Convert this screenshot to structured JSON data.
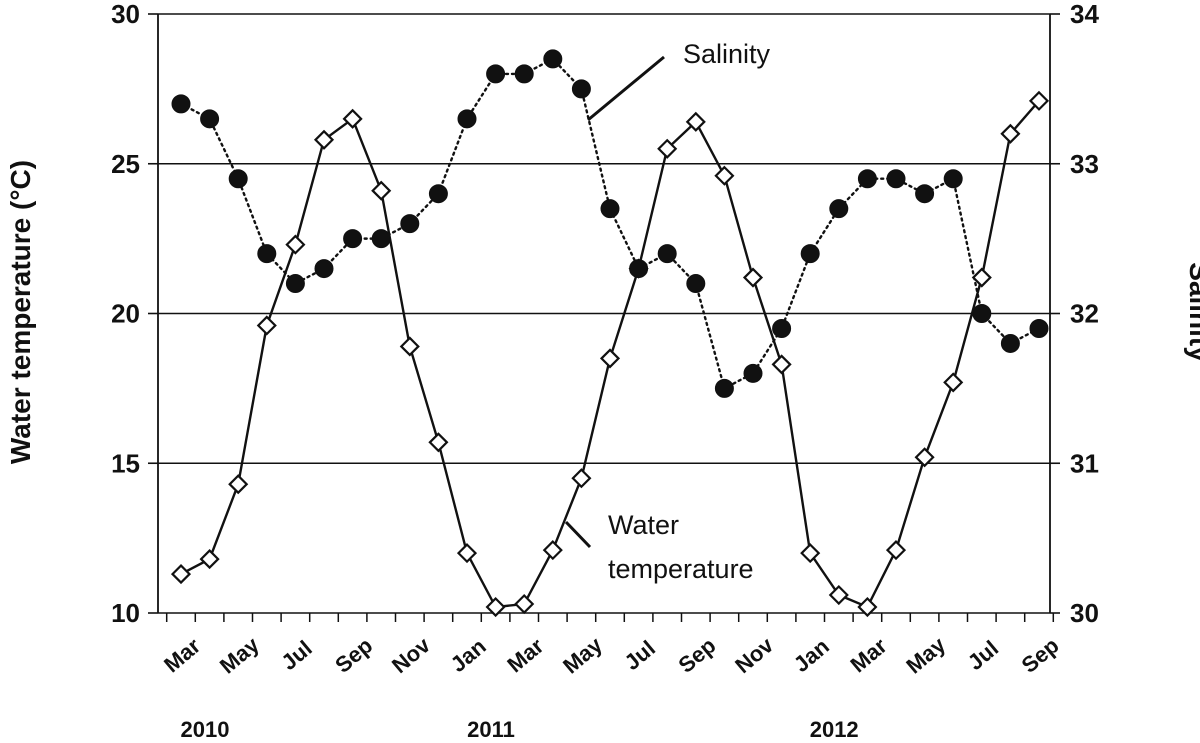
{
  "chart_data": {
    "type": "line",
    "x": [
      "2010-03",
      "2010-04",
      "2010-05",
      "2010-06",
      "2010-07",
      "2010-08",
      "2010-09",
      "2010-10",
      "2010-11",
      "2010-12",
      "2011-01",
      "2011-02",
      "2011-03",
      "2011-04",
      "2011-05",
      "2011-06",
      "2011-07",
      "2011-08",
      "2011-09",
      "2011-10",
      "2011-11",
      "2011-12",
      "2012-01",
      "2012-02",
      "2012-03",
      "2012-04",
      "2012-05",
      "2012-06",
      "2012-07",
      "2012-08",
      "2012-09"
    ],
    "x_tick_labels": [
      "Mar",
      "May",
      "Jul",
      "Sep",
      "Nov",
      "Jan",
      "Mar",
      "May",
      "Jul",
      "Sep",
      "Nov",
      "Jan",
      "Mar",
      "May",
      "Jul",
      "Sep"
    ],
    "year_labels": [
      "2010",
      "2011",
      "2012"
    ],
    "ylabel": "Water temperature (°C)",
    "y2label": "Salinity",
    "ylim": [
      10,
      30
    ],
    "y2lim": [
      30,
      34
    ],
    "yticks": [
      "10",
      "15",
      "20",
      "25",
      "30"
    ],
    "y2ticks": [
      "30",
      "31",
      "32",
      "33",
      "34"
    ],
    "grid": "horizontal",
    "series": [
      {
        "name": "Water temperature",
        "axis": "left",
        "marker": "open-diamond",
        "line": "solid",
        "values": [
          11.3,
          11.8,
          14.3,
          19.6,
          22.3,
          25.8,
          26.5,
          24.1,
          18.9,
          15.7,
          12.0,
          10.2,
          10.3,
          12.1,
          14.5,
          18.5,
          21.5,
          25.5,
          26.4,
          24.6,
          21.2,
          18.3,
          12.0,
          10.6,
          10.2,
          12.1,
          15.2,
          17.7,
          21.2,
          26.0,
          27.1
        ]
      },
      {
        "name": "Salinity",
        "axis": "right",
        "marker": "filled-circle",
        "line": "dotted",
        "values": [
          33.4,
          33.3,
          32.9,
          32.4,
          32.2,
          32.3,
          32.5,
          32.5,
          32.6,
          32.8,
          33.3,
          33.6,
          33.6,
          33.7,
          33.5,
          32.7,
          32.3,
          32.4,
          32.2,
          31.5,
          31.6,
          31.9,
          32.4,
          32.7,
          32.9,
          32.9,
          32.8,
          32.9,
          32.0,
          31.8,
          31.9
        ]
      }
    ],
    "annotations": {
      "salinity_label": "Salinity",
      "water_temp_label_1": "Water",
      "water_temp_label_2": "temperature"
    }
  }
}
